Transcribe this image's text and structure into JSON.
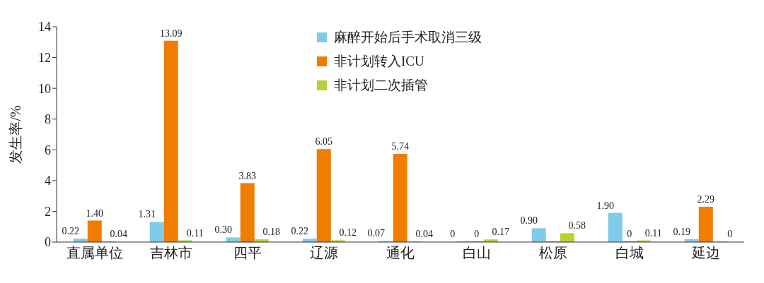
{
  "chart_data": {
    "type": "bar",
    "ylabel": "发生率/%",
    "categories": [
      "直属单位",
      "吉林市",
      "四平",
      "辽源",
      "通化",
      "白山",
      "松原",
      "白城",
      "延边"
    ],
    "series": [
      {
        "name": "麻醉开始后手术取消三级",
        "color": "#7fcbea",
        "values": [
          0.22,
          1.31,
          0.3,
          0.22,
          0.07,
          0,
          0.9,
          1.9,
          0.19
        ],
        "value_labels": [
          "0.22",
          "1.31",
          "0.30",
          "0.22",
          "0.07",
          "0",
          "0.90",
          "1.90",
          "0.19"
        ]
      },
      {
        "name": "非计划转入ICU",
        "color": "#f07c00",
        "values": [
          1.4,
          13.09,
          3.83,
          6.05,
          5.74,
          0,
          0,
          0,
          2.29
        ],
        "value_labels": [
          "1.40",
          "13.09",
          "3.83",
          "6.05",
          "5.74",
          "0",
          null,
          "0",
          "2.29"
        ]
      },
      {
        "name": "非计划二次插管",
        "color": "#b5d334",
        "values": [
          0.04,
          0.11,
          0.18,
          0.12,
          0.04,
          0.17,
          0.58,
          0.11,
          0
        ],
        "value_labels": [
          "0.04",
          "0.11",
          "0.18",
          "0.12",
          "0.04",
          "0.17",
          "0.58",
          "0.11",
          "0"
        ]
      }
    ],
    "ylim": [
      0,
      14
    ],
    "yticks": [
      0,
      2,
      4,
      6,
      8,
      10,
      12,
      14
    ],
    "grid": false,
    "legend": "top"
  }
}
